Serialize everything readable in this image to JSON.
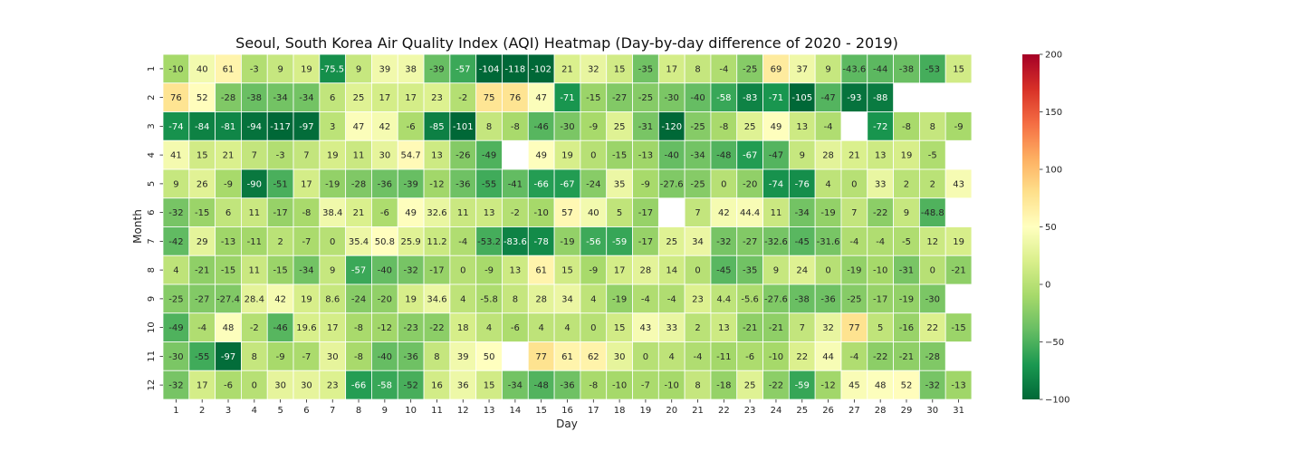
{
  "chart_data": {
    "type": "heatmap",
    "title": "Seoul, South Korea Air Quality Index (AQI) Heatmap (Day-by-day difference of 2020 - 2019)",
    "xlabel": "Day",
    "ylabel": "Month",
    "x_categories": [
      "1",
      "2",
      "3",
      "4",
      "5",
      "6",
      "7",
      "8",
      "9",
      "10",
      "11",
      "12",
      "13",
      "14",
      "15",
      "16",
      "17",
      "18",
      "19",
      "20",
      "21",
      "22",
      "23",
      "24",
      "25",
      "26",
      "27",
      "28",
      "29",
      "30",
      "31"
    ],
    "y_categories": [
      "1",
      "2",
      "3",
      "4",
      "5",
      "6",
      "7",
      "8",
      "9",
      "10",
      "11",
      "12"
    ],
    "values": [
      [
        -10,
        40,
        61,
        -3,
        9,
        19,
        -75.5,
        9,
        39,
        38,
        -39,
        -57,
        -104,
        -118,
        -102,
        21,
        32,
        15,
        -35,
        17,
        8,
        -4,
        -25,
        69,
        37,
        9,
        -43.6,
        -44,
        -38,
        -53,
        15
      ],
      [
        76,
        52,
        -28,
        -38,
        -34,
        -34,
        6,
        25,
        17,
        17,
        23,
        -2,
        75,
        76,
        47,
        -71,
        -15,
        -27,
        -25,
        -30,
        -40,
        -58,
        -83,
        -71,
        -105,
        -47,
        -93,
        -88,
        null,
        null,
        null
      ],
      [
        -74,
        -84,
        -81,
        -94,
        -117,
        -97,
        3,
        47,
        42,
        -6,
        -85,
        -101,
        8,
        -8,
        -46,
        -30,
        -9,
        25,
        -31,
        -120,
        -25,
        -8,
        25,
        49,
        13,
        -4,
        null,
        -72,
        -8,
        8,
        -9
      ],
      [
        41,
        15,
        21,
        7,
        -3,
        7,
        19,
        11,
        30,
        54.7,
        13,
        -26,
        -49,
        null,
        49,
        19,
        0,
        -15,
        -13,
        -40,
        -34,
        -48,
        -67,
        -47,
        9,
        28,
        21,
        13,
        19,
        -5,
        null
      ],
      [
        9,
        26,
        -9,
        -90,
        -51,
        17,
        -19,
        -28,
        -36,
        -39,
        -12,
        -36,
        -55,
        -41,
        -66,
        -67,
        -24,
        35,
        -9,
        -27.6,
        -25,
        0,
        -20,
        -74,
        -76,
        4,
        0,
        33,
        2,
        2,
        43
      ],
      [
        -32,
        -15,
        6,
        11,
        -17,
        -8,
        38.4,
        21,
        -6,
        49,
        32.6,
        11,
        13,
        -2,
        -10,
        57,
        40,
        5,
        -17,
        null,
        7,
        42,
        44.4,
        11,
        -34,
        -19,
        7,
        -22,
        9,
        -48.8,
        null
      ],
      [
        -42,
        29,
        -13,
        -11,
        2,
        -7,
        0,
        35.4,
        50.8,
        25.9,
        11.2,
        -4,
        -53.2,
        -83.6,
        -78,
        -19,
        -56,
        -59,
        -17,
        25,
        34,
        -32,
        -27,
        -32.6,
        -45,
        -31.6,
        -4,
        -4,
        -5,
        12,
        19
      ],
      [
        4,
        -21,
        -15,
        11,
        -15,
        -34,
        9,
        -57,
        -40,
        -32,
        -17,
        0,
        -9,
        13,
        61,
        15,
        -9,
        17,
        28,
        14,
        0,
        -45,
        -35,
        9,
        24,
        0,
        -19,
        -10,
        -31,
        0,
        -21
      ],
      [
        -25,
        -27,
        -27.4,
        28.4,
        42,
        19,
        8.6,
        -24,
        -20,
        19,
        34.6,
        4,
        -5.8,
        8,
        28,
        34,
        4,
        -19,
        -4,
        -4,
        23,
        4.4,
        -5.6,
        -27.6,
        -38,
        -36,
        -25,
        -17,
        -19,
        -30,
        null
      ],
      [
        -49,
        -4,
        48,
        -2,
        -46,
        19.6,
        17,
        -8,
        -12,
        -23,
        -22,
        18,
        4,
        -6,
        4,
        4,
        0,
        15,
        43,
        33,
        2,
        13,
        -21,
        -21,
        7,
        32,
        77,
        5,
        -16,
        22,
        -15
      ],
      [
        -30,
        -55,
        -97,
        8,
        -9,
        -7,
        30,
        -8,
        -40,
        -36,
        8,
        39,
        50,
        null,
        77,
        61,
        62,
        30,
        0,
        4,
        -4,
        -11,
        -6,
        -10,
        22,
        44,
        -4,
        -22,
        -21,
        -28,
        null
      ],
      [
        -32,
        17,
        -6,
        0,
        30,
        30,
        23,
        -66,
        -58,
        -52,
        16,
        36,
        15,
        -34,
        -48,
        -36,
        -8,
        -10,
        -7,
        -10,
        8,
        -18,
        25,
        -22,
        -59,
        -12,
        45,
        48,
        52,
        -32,
        -13
      ]
    ],
    "vmin": -100,
    "vmax": 200,
    "colormap": "RdYlGn_r",
    "colorbar_ticks": [
      "200",
      "150",
      "100",
      "50",
      "0",
      "−50",
      "−100"
    ],
    "grid": false,
    "legend": "colorbar-right"
  }
}
